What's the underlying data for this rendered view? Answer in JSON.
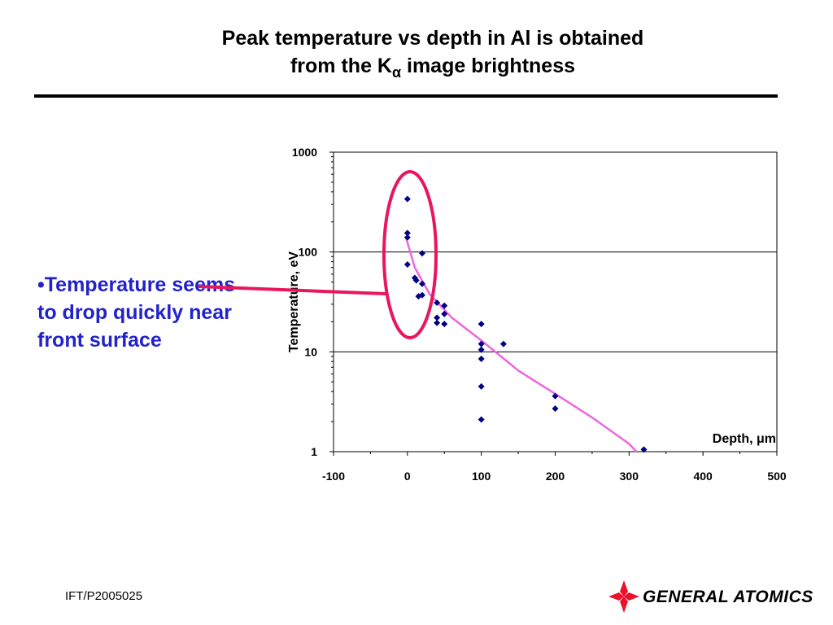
{
  "slide": {
    "title_line1": "Peak temperature vs depth in Al is obtained",
    "title_line2_prefix": "from the K",
    "title_line2_sub": "α",
    "title_line2_suffix": " image brightness",
    "bullet_text": "•Temperature seems to drop quickly near front surface",
    "footer_code": "IFT/P2005025",
    "logo_text": "GENERAL ATOMICS"
  },
  "colors": {
    "marker": "#000080",
    "fit_line": "#ee66dd",
    "highlight": "#e8175d",
    "bullet_text": "#2222cc",
    "logo_red": "#e8102a"
  },
  "chart_data": {
    "type": "scatter",
    "title": "",
    "xlabel_prefix": "Depth, ",
    "xlabel_unit": "μm",
    "ylabel": "Temperature, eV",
    "xlim": [
      -100,
      500
    ],
    "ylim": [
      1,
      1000
    ],
    "y_scale": "log",
    "x_ticks": [
      "-100",
      "0",
      "100",
      "200",
      "300",
      "400",
      "500"
    ],
    "y_ticks": [
      "1",
      "10",
      "100",
      "1000"
    ],
    "grid": "major horizontal lines at 10 and 100",
    "series": [
      {
        "marker": "diamond",
        "points": [
          {
            "x": 0,
            "y": 340
          },
          {
            "x": 0,
            "y": 155
          },
          {
            "x": 0,
            "y": 140
          },
          {
            "x": 0,
            "y": 75
          },
          {
            "x": 10,
            "y": 55
          },
          {
            "x": 12,
            "y": 52
          },
          {
            "x": 15,
            "y": 36
          },
          {
            "x": 20,
            "y": 97
          },
          {
            "x": 20,
            "y": 48
          },
          {
            "x": 20,
            "y": 37
          },
          {
            "x": 40,
            "y": 31
          },
          {
            "x": 40,
            "y": 22
          },
          {
            "x": 40,
            "y": 19.5
          },
          {
            "x": 50,
            "y": 29
          },
          {
            "x": 50,
            "y": 24
          },
          {
            "x": 50,
            "y": 19
          },
          {
            "x": 100,
            "y": 19
          },
          {
            "x": 100,
            "y": 12
          },
          {
            "x": 100,
            "y": 10.5
          },
          {
            "x": 100,
            "y": 8.5
          },
          {
            "x": 100,
            "y": 4.5
          },
          {
            "x": 100,
            "y": 2.1
          },
          {
            "x": 130,
            "y": 12
          },
          {
            "x": 200,
            "y": 3.6
          },
          {
            "x": 200,
            "y": 2.7
          },
          {
            "x": 320,
            "y": 1.05
          }
        ]
      }
    ],
    "fit_curve": [
      {
        "x": -2,
        "y": 140
      },
      {
        "x": 10,
        "y": 70
      },
      {
        "x": 30,
        "y": 38
      },
      {
        "x": 60,
        "y": 22
      },
      {
        "x": 100,
        "y": 13
      },
      {
        "x": 150,
        "y": 6.5
      },
      {
        "x": 200,
        "y": 3.8
      },
      {
        "x": 250,
        "y": 2.2
      },
      {
        "x": 300,
        "y": 1.2
      },
      {
        "x": 310,
        "y": 1.0
      }
    ],
    "highlight": "ellipse around points at depth 0–30 μm",
    "callout": "line from bullet text to highlighted ellipse"
  }
}
